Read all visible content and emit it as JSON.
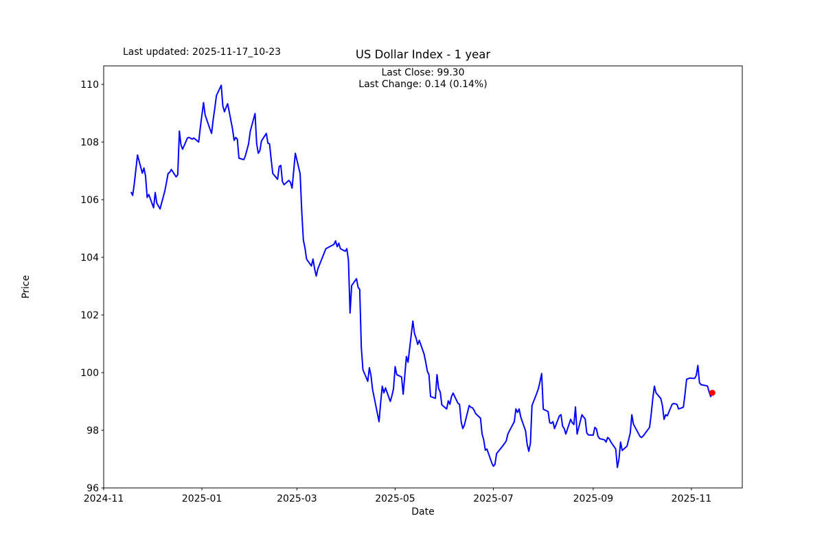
{
  "header": {
    "last_updated": "Last updated: 2025-11-17_10-23",
    "title": "US Dollar Index - 1 year",
    "last_close": "Last Close: 99.30",
    "last_change": "Last Change: 0.14 (0.14%)"
  },
  "axes": {
    "xlabel": "Date",
    "ylabel": "Price",
    "xticks": [
      {
        "label": "2024-11",
        "date": "2024-11-01"
      },
      {
        "label": "2025-01",
        "date": "2025-01-01"
      },
      {
        "label": "2025-03",
        "date": "2025-03-01"
      },
      {
        "label": "2025-05",
        "date": "2025-05-01"
      },
      {
        "label": "2025-07",
        "date": "2025-07-01"
      },
      {
        "label": "2025-09",
        "date": "2025-09-01"
      },
      {
        "label": "2025-11",
        "date": "2025-11-01"
      }
    ],
    "yticks": [
      {
        "label": "96",
        "value": 96
      },
      {
        "label": "98",
        "value": 98
      },
      {
        "label": "100",
        "value": 100
      },
      {
        "label": "102",
        "value": 102
      },
      {
        "label": "104",
        "value": 104
      },
      {
        "label": "106",
        "value": 106
      },
      {
        "label": "108",
        "value": 108
      },
      {
        "label": "110",
        "value": 110
      }
    ]
  },
  "style": {
    "line_color": "#0000ff",
    "marker_color": "#ff0000",
    "axis_color": "#000000",
    "background": "#ffffff"
  },
  "chart_data": {
    "type": "line",
    "title": "US Dollar Index - 1 year",
    "xlabel": "Date",
    "ylabel": "Price",
    "ylim": [
      96,
      110.64
    ],
    "x_range": [
      "2024-11-01",
      "2025-12-02"
    ],
    "grid": false,
    "legend": "none",
    "last_close": 99.3,
    "last_change": "0.14 (0.14%)",
    "last_point": {
      "date": "2025-11-14",
      "value": 99.3,
      "marker": "red-dot"
    },
    "series": [
      {
        "name": "US Dollar Index",
        "color": "#0000ff",
        "points": [
          [
            "2024-11-18",
            106.27
          ],
          [
            "2024-11-19",
            106.15
          ],
          [
            "2024-11-20",
            106.55
          ],
          [
            "2024-11-22",
            107.55
          ],
          [
            "2024-11-25",
            106.92
          ],
          [
            "2024-11-26",
            107.1
          ],
          [
            "2024-11-27",
            106.82
          ],
          [
            "2024-11-28",
            106.08
          ],
          [
            "2024-11-29",
            106.18
          ],
          [
            "2024-12-02",
            105.72
          ],
          [
            "2024-12-03",
            106.25
          ],
          [
            "2024-12-04",
            105.88
          ],
          [
            "2024-12-06",
            105.68
          ],
          [
            "2024-12-09",
            106.31
          ],
          [
            "2024-12-10",
            106.6
          ],
          [
            "2024-12-11",
            106.91
          ],
          [
            "2024-12-12",
            106.95
          ],
          [
            "2024-12-13",
            107.05
          ],
          [
            "2024-12-16",
            106.79
          ],
          [
            "2024-12-17",
            106.87
          ],
          [
            "2024-12-18",
            108.38
          ],
          [
            "2024-12-19",
            107.9
          ],
          [
            "2024-12-20",
            107.75
          ],
          [
            "2024-12-23",
            108.14
          ],
          [
            "2024-12-24",
            108.16
          ],
          [
            "2024-12-26",
            108.1
          ],
          [
            "2024-12-27",
            108.14
          ],
          [
            "2024-12-30",
            108.0
          ],
          [
            "2024-12-31",
            108.5
          ],
          [
            "2025-01-02",
            109.37
          ],
          [
            "2025-01-03",
            108.94
          ],
          [
            "2025-01-06",
            108.45
          ],
          [
            "2025-01-07",
            108.3
          ],
          [
            "2025-01-08",
            108.78
          ],
          [
            "2025-01-09",
            109.17
          ],
          [
            "2025-01-10",
            109.61
          ],
          [
            "2025-01-13",
            109.97
          ],
          [
            "2025-01-14",
            109.25
          ],
          [
            "2025-01-15",
            109.05
          ],
          [
            "2025-01-16",
            109.2
          ],
          [
            "2025-01-17",
            109.33
          ],
          [
            "2025-01-20",
            108.46
          ],
          [
            "2025-01-21",
            108.06
          ],
          [
            "2025-01-22",
            108.16
          ],
          [
            "2025-01-23",
            108.1
          ],
          [
            "2025-01-24",
            107.44
          ],
          [
            "2025-01-27",
            107.39
          ],
          [
            "2025-01-28",
            107.52
          ],
          [
            "2025-01-30",
            107.94
          ],
          [
            "2025-01-31",
            108.37
          ],
          [
            "2025-02-03",
            108.99
          ],
          [
            "2025-02-04",
            107.95
          ],
          [
            "2025-02-05",
            107.61
          ],
          [
            "2025-02-06",
            107.7
          ],
          [
            "2025-02-07",
            108.04
          ],
          [
            "2025-02-10",
            108.3
          ],
          [
            "2025-02-11",
            107.96
          ],
          [
            "2025-02-12",
            107.94
          ],
          [
            "2025-02-13",
            107.4
          ],
          [
            "2025-02-14",
            106.91
          ],
          [
            "2025-02-17",
            106.71
          ],
          [
            "2025-02-18",
            107.15
          ],
          [
            "2025-02-19",
            107.19
          ],
          [
            "2025-02-20",
            106.63
          ],
          [
            "2025-02-21",
            106.52
          ],
          [
            "2025-02-24",
            106.67
          ],
          [
            "2025-02-25",
            106.6
          ],
          [
            "2025-02-26",
            106.4
          ],
          [
            "2025-02-27",
            107.0
          ],
          [
            "2025-02-28",
            107.61
          ],
          [
            "2025-03-03",
            106.9
          ],
          [
            "2025-03-04",
            105.6
          ],
          [
            "2025-03-05",
            104.6
          ],
          [
            "2025-03-06",
            104.33
          ],
          [
            "2025-03-07",
            103.94
          ],
          [
            "2025-03-10",
            103.7
          ],
          [
            "2025-03-11",
            103.94
          ],
          [
            "2025-03-12",
            103.6
          ],
          [
            "2025-03-13",
            103.35
          ],
          [
            "2025-03-14",
            103.6
          ],
          [
            "2025-03-17",
            104.02
          ],
          [
            "2025-03-19",
            104.3
          ],
          [
            "2025-03-20",
            104.33
          ],
          [
            "2025-03-24",
            104.45
          ],
          [
            "2025-03-25",
            104.57
          ],
          [
            "2025-03-26",
            104.37
          ],
          [
            "2025-03-27",
            104.49
          ],
          [
            "2025-03-28",
            104.3
          ],
          [
            "2025-03-31",
            104.21
          ],
          [
            "2025-04-01",
            104.3
          ],
          [
            "2025-04-02",
            103.9
          ],
          [
            "2025-04-03",
            102.07
          ],
          [
            "2025-04-04",
            103.02
          ],
          [
            "2025-04-07",
            103.26
          ],
          [
            "2025-04-08",
            102.96
          ],
          [
            "2025-04-09",
            102.89
          ],
          [
            "2025-04-10",
            100.87
          ],
          [
            "2025-04-11",
            100.1
          ],
          [
            "2025-04-14",
            99.7
          ],
          [
            "2025-04-15",
            100.17
          ],
          [
            "2025-04-16",
            99.9
          ],
          [
            "2025-04-17",
            99.41
          ],
          [
            "2025-04-21",
            98.3
          ],
          [
            "2025-04-22",
            98.95
          ],
          [
            "2025-04-23",
            99.53
          ],
          [
            "2025-04-24",
            99.3
          ],
          [
            "2025-04-25",
            99.47
          ],
          [
            "2025-04-28",
            99.0
          ],
          [
            "2025-04-29",
            99.2
          ],
          [
            "2025-04-30",
            99.45
          ],
          [
            "2025-05-01",
            100.21
          ],
          [
            "2025-05-02",
            99.93
          ],
          [
            "2025-05-05",
            99.85
          ],
          [
            "2025-05-06",
            99.25
          ],
          [
            "2025-05-08",
            100.56
          ],
          [
            "2025-05-09",
            100.36
          ],
          [
            "2025-05-12",
            101.79
          ],
          [
            "2025-05-13",
            101.36
          ],
          [
            "2025-05-14",
            101.2
          ],
          [
            "2025-05-15",
            100.98
          ],
          [
            "2025-05-16",
            101.12
          ],
          [
            "2025-05-19",
            100.64
          ],
          [
            "2025-05-20",
            100.36
          ],
          [
            "2025-05-21",
            100.05
          ],
          [
            "2025-05-22",
            99.93
          ],
          [
            "2025-05-23",
            99.17
          ],
          [
            "2025-05-26",
            99.11
          ],
          [
            "2025-05-27",
            99.93
          ],
          [
            "2025-05-28",
            99.45
          ],
          [
            "2025-05-29",
            99.33
          ],
          [
            "2025-05-30",
            98.88
          ],
          [
            "2025-06-02",
            98.74
          ],
          [
            "2025-06-03",
            99.02
          ],
          [
            "2025-06-04",
            98.9
          ],
          [
            "2025-06-05",
            99.17
          ],
          [
            "2025-06-06",
            99.29
          ],
          [
            "2025-06-09",
            98.94
          ],
          [
            "2025-06-10",
            98.9
          ],
          [
            "2025-06-11",
            98.3
          ],
          [
            "2025-06-12",
            98.06
          ],
          [
            "2025-06-13",
            98.18
          ],
          [
            "2025-06-16",
            98.86
          ],
          [
            "2025-06-17",
            98.8
          ],
          [
            "2025-06-18",
            98.78
          ],
          [
            "2025-06-19",
            98.7
          ],
          [
            "2025-06-20",
            98.58
          ],
          [
            "2025-06-23",
            98.42
          ],
          [
            "2025-06-24",
            97.87
          ],
          [
            "2025-06-25",
            97.67
          ],
          [
            "2025-06-26",
            97.31
          ],
          [
            "2025-06-27",
            97.35
          ],
          [
            "2025-06-30",
            96.87
          ],
          [
            "2025-07-01",
            96.75
          ],
          [
            "2025-07-02",
            96.82
          ],
          [
            "2025-07-03",
            97.19
          ],
          [
            "2025-07-07",
            97.47
          ],
          [
            "2025-07-08",
            97.55
          ],
          [
            "2025-07-09",
            97.63
          ],
          [
            "2025-07-10",
            97.87
          ],
          [
            "2025-07-11",
            97.98
          ],
          [
            "2025-07-14",
            98.3
          ],
          [
            "2025-07-15",
            98.74
          ],
          [
            "2025-07-16",
            98.62
          ],
          [
            "2025-07-17",
            98.74
          ],
          [
            "2025-07-18",
            98.46
          ],
          [
            "2025-07-21",
            97.98
          ],
          [
            "2025-07-22",
            97.51
          ],
          [
            "2025-07-23",
            97.27
          ],
          [
            "2025-07-24",
            97.55
          ],
          [
            "2025-07-25",
            98.86
          ],
          [
            "2025-07-28",
            99.29
          ],
          [
            "2025-07-29",
            99.45
          ],
          [
            "2025-07-30",
            99.7
          ],
          [
            "2025-07-31",
            99.97
          ],
          [
            "2025-08-01",
            98.73
          ],
          [
            "2025-08-04",
            98.65
          ],
          [
            "2025-08-05",
            98.26
          ],
          [
            "2025-08-06",
            98.24
          ],
          [
            "2025-08-07",
            98.3
          ],
          [
            "2025-08-08",
            98.06
          ],
          [
            "2025-08-11",
            98.5
          ],
          [
            "2025-08-12",
            98.54
          ],
          [
            "2025-08-13",
            98.14
          ],
          [
            "2025-08-14",
            98.06
          ],
          [
            "2025-08-15",
            97.87
          ],
          [
            "2025-08-18",
            98.38
          ],
          [
            "2025-08-19",
            98.26
          ],
          [
            "2025-08-20",
            98.2
          ],
          [
            "2025-08-21",
            98.81
          ],
          [
            "2025-08-22",
            97.87
          ],
          [
            "2025-08-25",
            98.54
          ],
          [
            "2025-08-26",
            98.46
          ],
          [
            "2025-08-27",
            98.4
          ],
          [
            "2025-08-28",
            97.91
          ],
          [
            "2025-08-29",
            97.84
          ],
          [
            "2025-09-01",
            97.83
          ],
          [
            "2025-09-02",
            98.1
          ],
          [
            "2025-09-03",
            98.05
          ],
          [
            "2025-09-04",
            97.79
          ],
          [
            "2025-09-05",
            97.71
          ],
          [
            "2025-09-08",
            97.67
          ],
          [
            "2025-09-09",
            97.59
          ],
          [
            "2025-09-10",
            97.75
          ],
          [
            "2025-09-11",
            97.7
          ],
          [
            "2025-09-12",
            97.59
          ],
          [
            "2025-09-15",
            97.35
          ],
          [
            "2025-09-16",
            96.71
          ],
          [
            "2025-09-17",
            97.0
          ],
          [
            "2025-09-18",
            97.59
          ],
          [
            "2025-09-19",
            97.3
          ],
          [
            "2025-09-22",
            97.45
          ],
          [
            "2025-09-24",
            97.9
          ],
          [
            "2025-09-25",
            98.54
          ],
          [
            "2025-09-26",
            98.21
          ],
          [
            "2025-09-29",
            97.9
          ],
          [
            "2025-09-30",
            97.79
          ],
          [
            "2025-10-01",
            97.75
          ],
          [
            "2025-10-02",
            97.8
          ],
          [
            "2025-10-06",
            98.1
          ],
          [
            "2025-10-07",
            98.55
          ],
          [
            "2025-10-08",
            99.1
          ],
          [
            "2025-10-09",
            99.53
          ],
          [
            "2025-10-10",
            99.3
          ],
          [
            "2025-10-13",
            99.1
          ],
          [
            "2025-10-14",
            98.85
          ],
          [
            "2025-10-15",
            98.38
          ],
          [
            "2025-10-16",
            98.54
          ],
          [
            "2025-10-17",
            98.5
          ],
          [
            "2025-10-20",
            98.9
          ],
          [
            "2025-10-21",
            98.93
          ],
          [
            "2025-10-23",
            98.9
          ],
          [
            "2025-10-24",
            98.74
          ],
          [
            "2025-10-27",
            98.8
          ],
          [
            "2025-10-28",
            99.25
          ],
          [
            "2025-10-29",
            99.77
          ],
          [
            "2025-10-31",
            99.81
          ],
          [
            "2025-11-03",
            99.8
          ],
          [
            "2025-11-04",
            99.9
          ],
          [
            "2025-11-05",
            100.25
          ],
          [
            "2025-11-06",
            99.65
          ],
          [
            "2025-11-07",
            99.58
          ],
          [
            "2025-11-10",
            99.55
          ],
          [
            "2025-11-11",
            99.53
          ],
          [
            "2025-11-12",
            99.33
          ],
          [
            "2025-11-13",
            99.17
          ],
          [
            "2025-11-14",
            99.3
          ]
        ]
      }
    ]
  }
}
